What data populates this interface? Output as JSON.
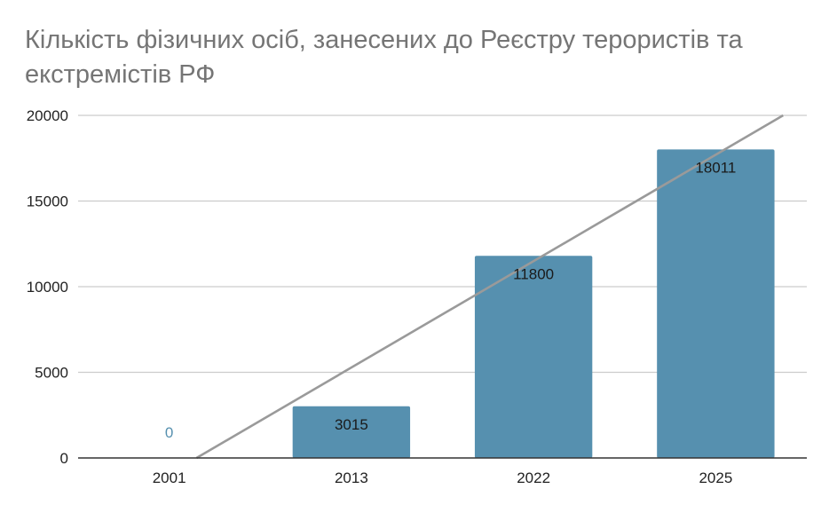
{
  "chart_data": {
    "type": "bar",
    "title": "Кількість фізичних осіб, занесених до Реєстру терористів та екстремістів РФ",
    "xlabel": "",
    "ylabel": "",
    "categories": [
      "2001",
      "2013",
      "2022",
      "2025"
    ],
    "values": [
      0,
      3015,
      11800,
      18011
    ],
    "data_labels": [
      "0",
      "3015",
      "11800",
      "18011"
    ],
    "ylim": [
      0,
      20000
    ],
    "yticks": [
      0,
      5000,
      10000,
      15000,
      20000
    ],
    "ytick_labels": [
      "0",
      "5000",
      "10000",
      "15000",
      "20000"
    ],
    "grid": true,
    "legend": "none",
    "trendline": {
      "type": "linear",
      "points": [
        {
          "category_index": 0.15,
          "value": 0
        },
        {
          "category_index": 3.37,
          "value": 20000
        }
      ]
    },
    "colors": {
      "bar": "#5690af",
      "trendline": "#9a9a9a",
      "grid": "#cccccc",
      "axis": "#333333",
      "zero_label": "#5690af",
      "bar_label": "#1a1a1a"
    }
  }
}
